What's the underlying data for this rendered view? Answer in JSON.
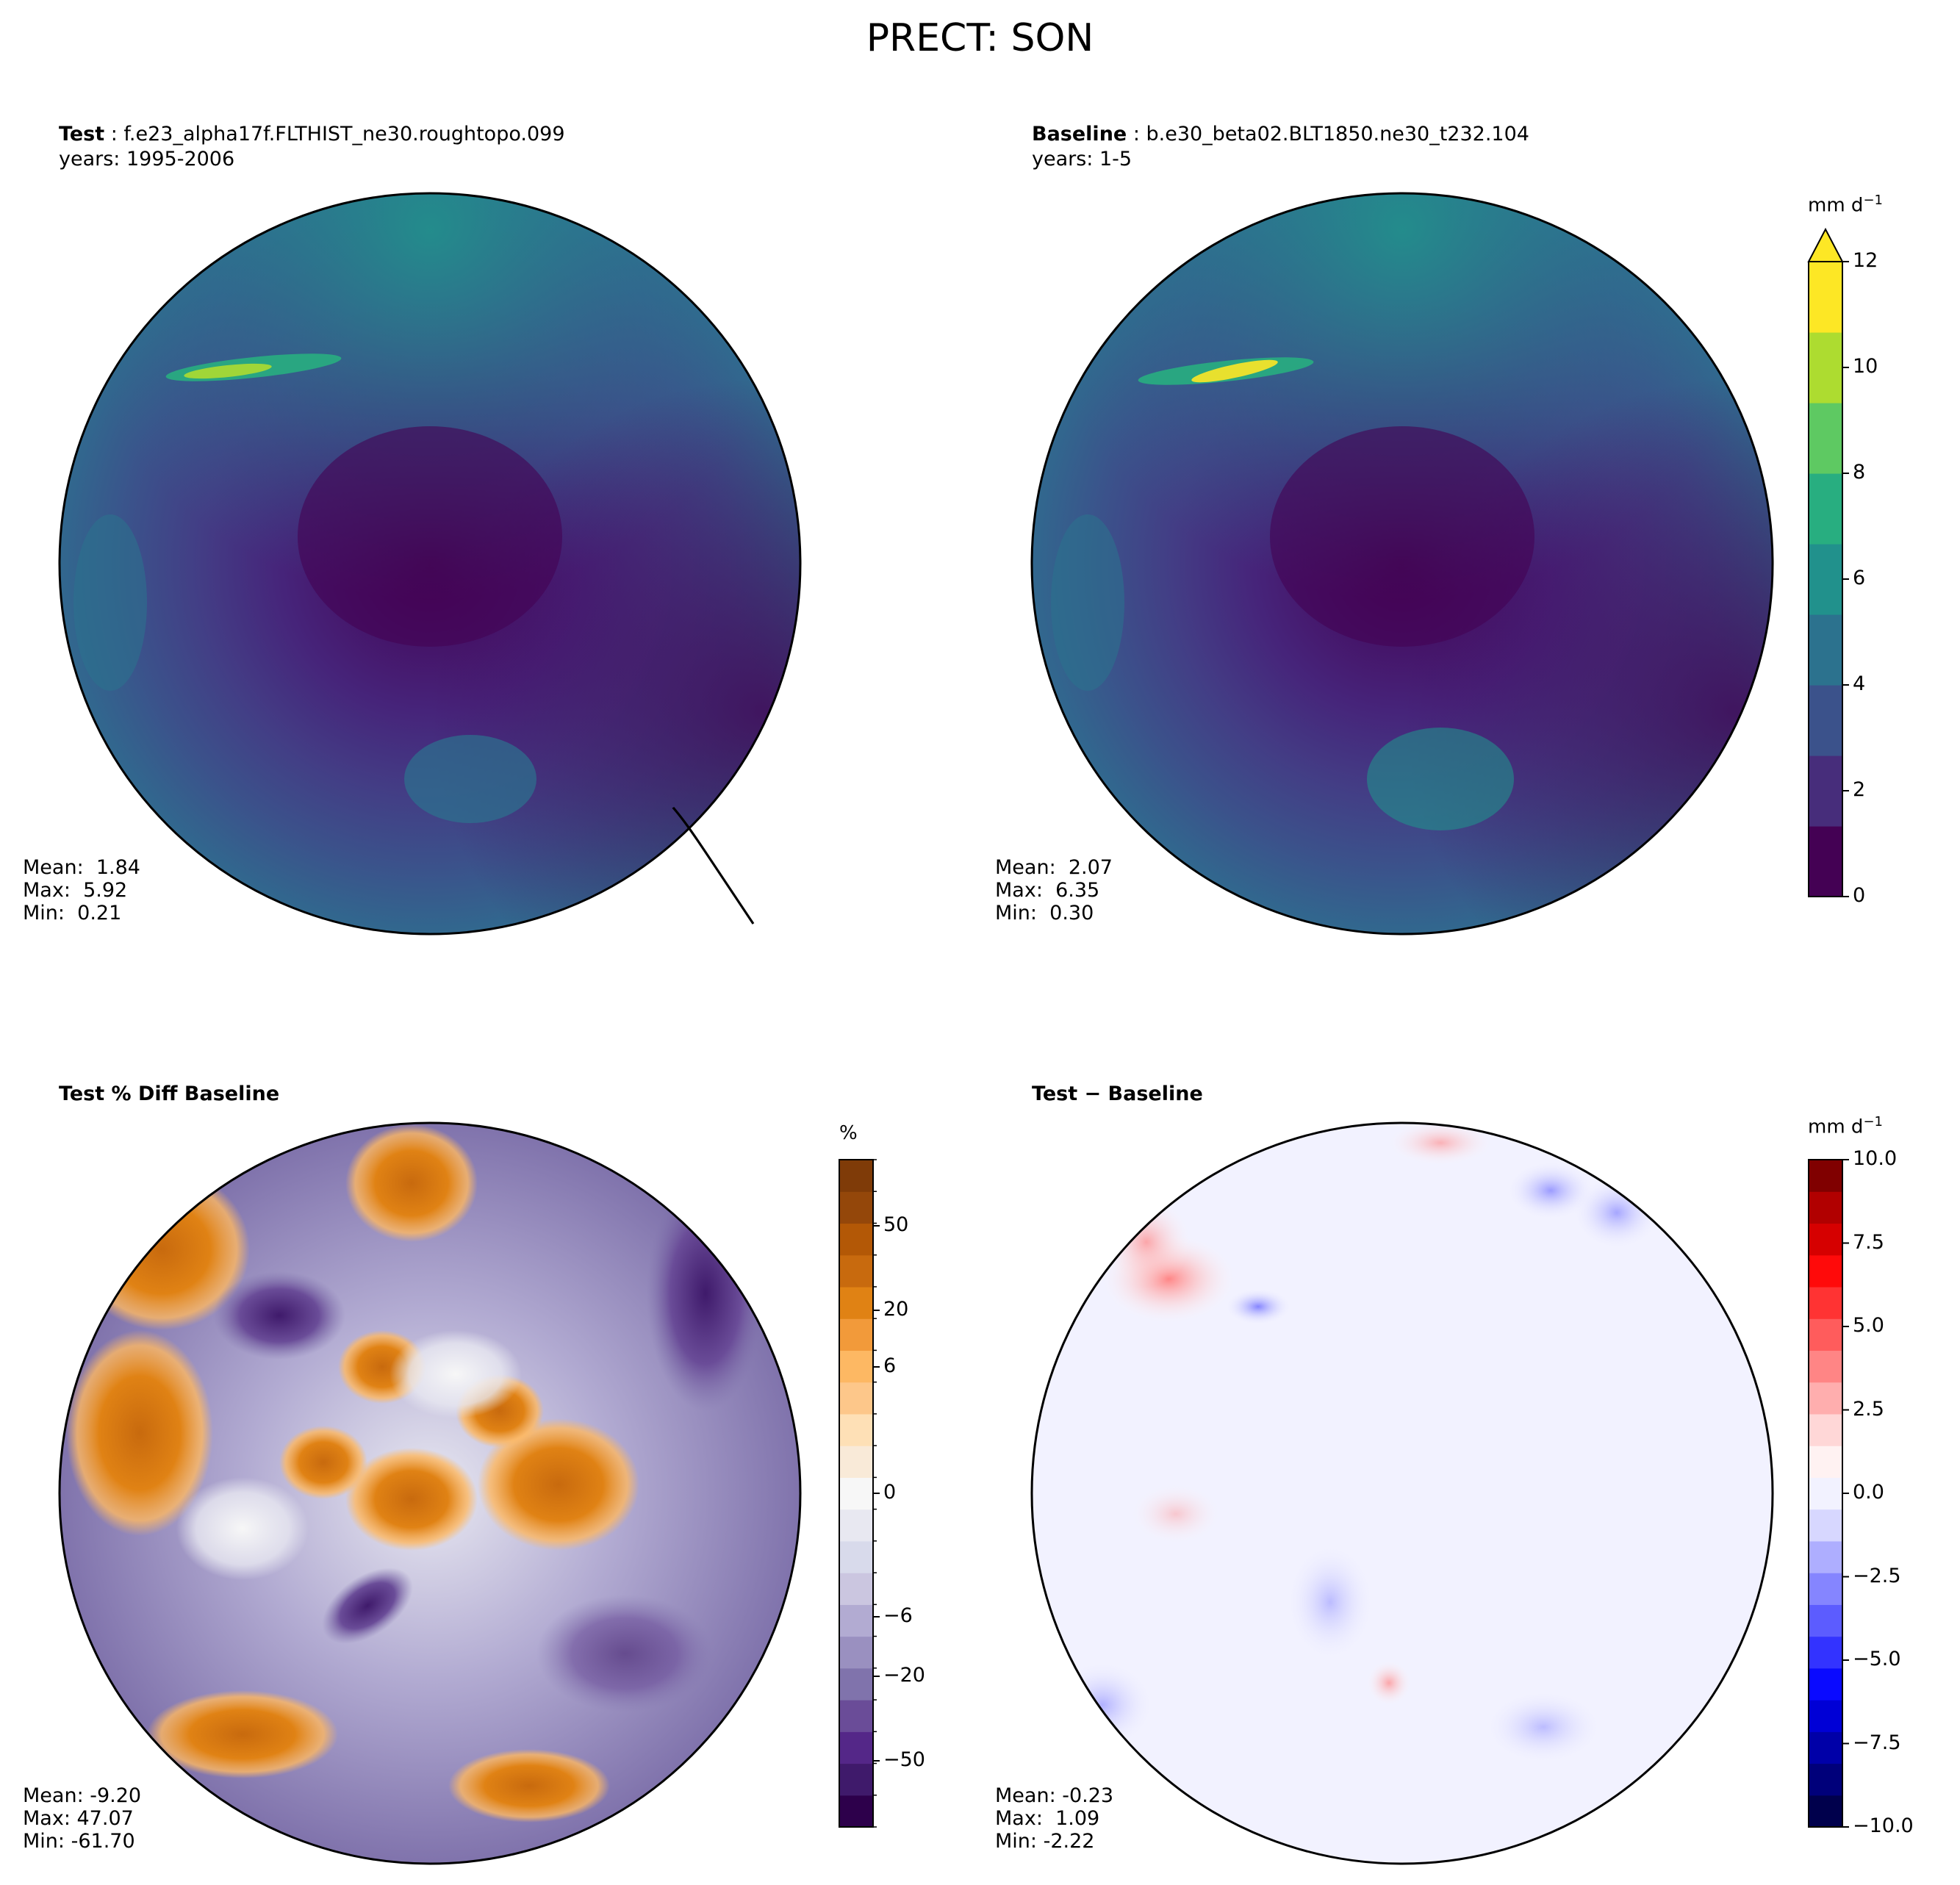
{
  "figure": {
    "title": "PRECT: SON"
  },
  "chart_data": [
    {
      "type": "heatmap",
      "projection": "north-polar-stereographic",
      "panel": "top-left",
      "label_bold": "Test",
      "label_rest": " : f.e23_alpha17f.FLTHIST_ne30.roughtopo.099",
      "subtitle": "years: 1995-2006",
      "stats": {
        "mean": "Mean:  1.84",
        "max": "Max:  5.92",
        "min": "Min:  0.21"
      },
      "colormap": "viridis",
      "vmin": 0,
      "vmax": 12
    },
    {
      "type": "heatmap",
      "projection": "north-polar-stereographic",
      "panel": "top-right",
      "label_bold": "Baseline",
      "label_rest": " : b.e30_beta02.BLT1850.ne30_t232.104",
      "subtitle": "years: 1-5",
      "stats": {
        "mean": "Mean:  2.07",
        "max": "Max:  6.35",
        "min": "Min:  0.30"
      },
      "colormap": "viridis",
      "vmin": 0,
      "vmax": 12,
      "colorbar": {
        "unit": "mm d",
        "unit_sup": "−1",
        "ticks": [
          "12",
          "10",
          "8",
          "6",
          "4",
          "2",
          "0"
        ],
        "extend": "max",
        "colors": [
          "#440154",
          "#472d7b",
          "#3b528b",
          "#2c728e",
          "#21918c",
          "#28ae80",
          "#5ec962",
          "#addc30",
          "#fde725"
        ]
      }
    },
    {
      "type": "heatmap",
      "projection": "north-polar-stereographic",
      "panel": "bottom-left",
      "label_bold": "Test % Diff Baseline",
      "stats": {
        "mean": "Mean: -9.20",
        "max": "Max: 47.07",
        "min": "Min: -61.70"
      },
      "colormap": "PuOr_r",
      "colorbar": {
        "unit": "%",
        "ticks": [
          "50",
          "20",
          "6",
          "0",
          "−6",
          "−20",
          "−50"
        ],
        "colors": [
          "#2d004b",
          "#3f1a6b",
          "#542788",
          "#6a4c98",
          "#8073ac",
          "#9a90c0",
          "#b2abd2",
          "#cbc6e0",
          "#d8daeb",
          "#e8e8f1",
          "#f7f7f7",
          "#f9ead8",
          "#fee0b6",
          "#fdc78a",
          "#fdb863",
          "#f29a3a",
          "#e08214",
          "#c86a0e",
          "#b35806",
          "#94470a",
          "#7f3b08"
        ]
      }
    },
    {
      "type": "heatmap",
      "projection": "north-polar-stereographic",
      "panel": "bottom-right",
      "label_bold": "Test",
      "label_rest": " − Baseline",
      "stats": {
        "mean": "Mean: -0.23",
        "max": "Max:  1.09",
        "min": "Min: -2.22"
      },
      "colormap": "seismic",
      "colorbar": {
        "unit": "mm d",
        "unit_sup": "−1",
        "ticks": [
          "10.0",
          "7.5",
          "5.0",
          "2.5",
          "0.0",
          "−2.5",
          "−5.0",
          "−7.5",
          "−10.0"
        ],
        "colors": [
          "#00004c",
          "#00007a",
          "#0000a8",
          "#0000d6",
          "#0a0aff",
          "#3333ff",
          "#5c5cff",
          "#8585ff",
          "#aeaeff",
          "#d7d7ff",
          "#f2f2ff",
          "#fff2f2",
          "#ffd7d7",
          "#ffaeae",
          "#ff8585",
          "#ff5c5c",
          "#ff3333",
          "#ff0a0a",
          "#d60000",
          "#b10000",
          "#800000"
        ]
      }
    }
  ]
}
